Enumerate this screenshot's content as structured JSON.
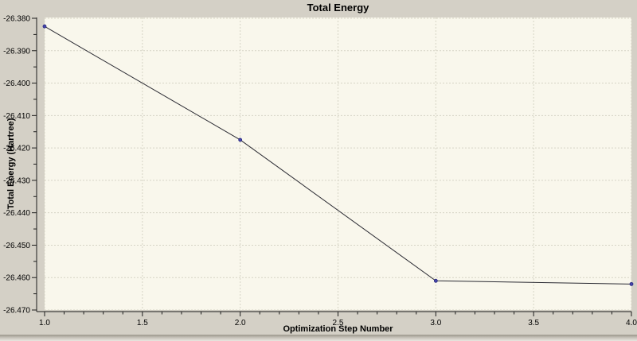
{
  "window": {
    "title": "Total Energy"
  },
  "chart_data": {
    "type": "line",
    "title": "Total Energy",
    "xlabel": "Optimization Step Number",
    "ylabel": "Total Energy (Hartree)",
    "x": [
      1.0,
      2.0,
      3.0,
      4.0
    ],
    "y": [
      -26.3825,
      -26.4175,
      -26.461,
      -26.462
    ],
    "xlim": [
      1.0,
      4.0
    ],
    "ylim": [
      -26.47,
      -26.38
    ],
    "x_major_ticks": [
      1.0,
      1.5,
      2.0,
      2.5,
      3.0,
      3.5,
      4.0
    ],
    "x_tick_labels": [
      "1.0",
      "1.5",
      "2.0",
      "2.5",
      "3.0",
      "3.5",
      "4.0"
    ],
    "x_minor_step": 0.1,
    "y_major_ticks": [
      -26.38,
      -26.39,
      -26.4,
      -26.41,
      -26.42,
      -26.43,
      -26.44,
      -26.45,
      -26.46,
      -26.47
    ],
    "y_tick_labels": [
      "-26.380",
      "-26.390",
      "-26.400",
      "-26.410",
      "-26.420",
      "-26.430",
      "-26.440",
      "-26.450",
      "-26.460",
      "-26.470"
    ],
    "y_minor_step": 0.005,
    "grid": true,
    "legend": "none",
    "colors": {
      "outer_bg": "#d4d0c6",
      "plot_bg": "#f9f7ec",
      "grid": "#d6d4c5",
      "axis": "#1c1c1c",
      "line": "#2b2b33",
      "marker_fill": "#4646ac",
      "marker_stroke": "#26267e",
      "text": "#000000"
    }
  }
}
